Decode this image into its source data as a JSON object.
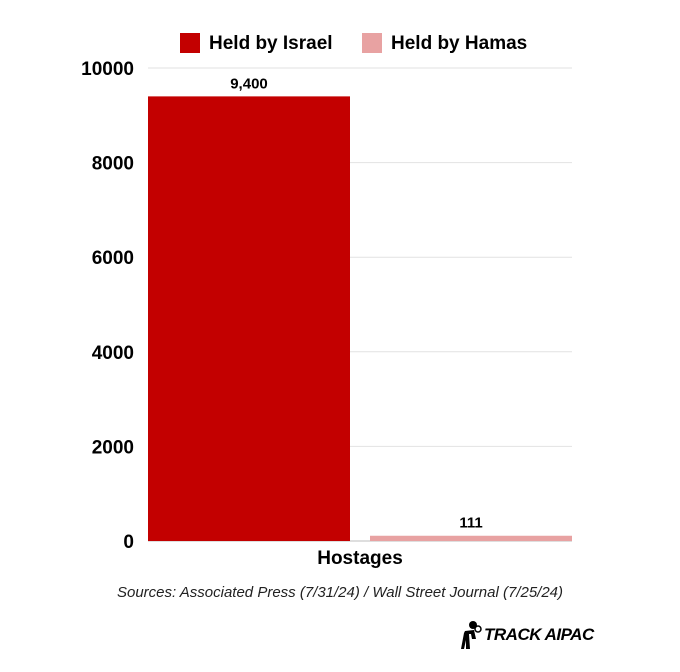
{
  "chart_data": {
    "type": "bar",
    "categories": [
      "Hostages"
    ],
    "series": [
      {
        "name": "Held by Israel",
        "values": [
          9400
        ],
        "color": "#c30000",
        "data_label": "9,400"
      },
      {
        "name": "Held by Hamas",
        "values": [
          111
        ],
        "color": "#e8a2a2",
        "data_label": "111"
      }
    ],
    "ylim": [
      0,
      10000
    ],
    "yticks": [
      0,
      2000,
      4000,
      6000,
      8000,
      10000
    ],
    "ytick_labels": [
      "0",
      "2000",
      "4000",
      "6000",
      "8000",
      "10000"
    ],
    "grid": true,
    "legend_position": "top"
  },
  "source_note": "Sources: Associated Press (7/31/24) / Wall Street Journal (7/25/24)",
  "logo_text": "TRACK AIPAC"
}
